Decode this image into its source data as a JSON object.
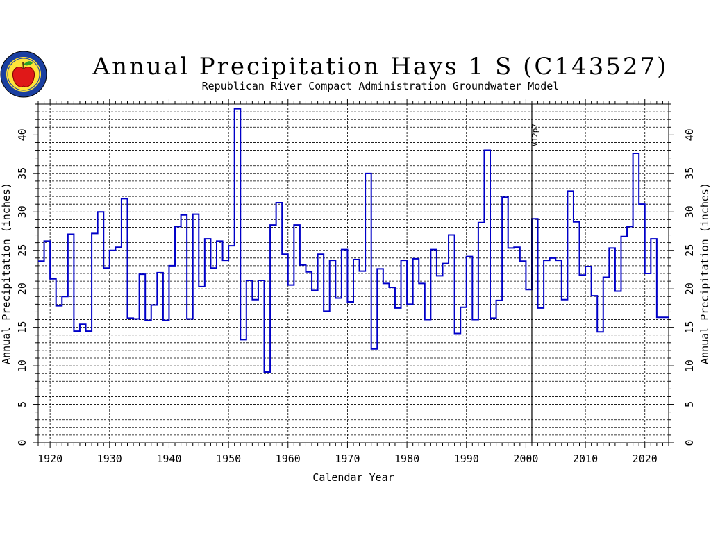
{
  "chart_data": {
    "type": "line",
    "step": true,
    "title": "Annual Precipitation Hays 1 S (C143527)",
    "subtitle": "Republican River Compact Administration Groundwater Model",
    "xlabel": "Calendar Year",
    "ylabel": "Annual Precipitation (inches)",
    "xlim": [
      1918,
      2024
    ],
    "ylim": [
      0,
      44
    ],
    "xticks": [
      1920,
      1930,
      1940,
      1950,
      1960,
      1970,
      1980,
      1990,
      2000,
      2010,
      2020
    ],
    "yticks": [
      0,
      5,
      10,
      15,
      20,
      25,
      30,
      35,
      40
    ],
    "grid": true,
    "line_color": "#0000c8",
    "annotation": {
      "text": "V12p7",
      "year": 2001
    },
    "series": [
      {
        "years": [
          1918,
          1919,
          1920,
          1921,
          1922,
          1923,
          1924,
          1925,
          1926,
          1927,
          1928,
          1929,
          1930,
          1931,
          1932,
          1933,
          1934,
          1935,
          1936,
          1937,
          1938,
          1939,
          1940,
          1941,
          1942,
          1943,
          1944,
          1945,
          1946,
          1947,
          1948,
          1949,
          1950,
          1951,
          1952,
          1953,
          1954,
          1955,
          1956,
          1957,
          1958,
          1959,
          1960,
          1961,
          1962,
          1963,
          1964,
          1965,
          1966,
          1967,
          1968,
          1969,
          1970,
          1971,
          1972,
          1973,
          1974,
          1975,
          1976,
          1977,
          1978,
          1979,
          1980,
          1981,
          1982,
          1983,
          1984,
          1985,
          1986,
          1987,
          1988,
          1989,
          1990,
          1991,
          1992,
          1993,
          1994,
          1995,
          1996,
          1997,
          1998,
          1999,
          2000,
          2001,
          2002,
          2003,
          2004,
          2005,
          2006,
          2007,
          2008,
          2009,
          2010,
          2011,
          2012,
          2013,
          2014,
          2015,
          2016,
          2017,
          2018,
          2019,
          2020,
          2021,
          2022,
          2023
        ],
        "values": [
          23.6,
          26.2,
          21.3,
          17.8,
          19.0,
          27.1,
          14.5,
          15.4,
          14.5,
          27.2,
          30.0,
          22.7,
          25.0,
          25.4,
          31.7,
          16.2,
          16.1,
          21.9,
          15.9,
          17.9,
          22.1,
          15.9,
          23.0,
          28.1,
          29.6,
          16.1,
          29.7,
          20.3,
          26.5,
          22.7,
          26.2,
          23.7,
          25.6,
          43.4,
          13.4,
          21.1,
          18.6,
          21.1,
          9.2,
          28.3,
          31.2,
          24.5,
          20.5,
          28.3,
          23.1,
          22.2,
          19.8,
          24.5,
          17.1,
          23.7,
          18.8,
          25.1,
          18.3,
          23.8,
          22.3,
          35.0,
          12.2,
          22.6,
          20.7,
          20.2,
          17.5,
          23.7,
          18.0,
          23.9,
          20.7,
          16.0,
          25.1,
          21.7,
          23.3,
          27.0,
          14.2,
          17.6,
          24.2,
          16.0,
          28.6,
          38.0,
          16.2,
          18.5,
          31.9,
          25.3,
          25.4,
          23.6,
          19.9,
          29.1,
          17.5,
          23.7,
          24.0,
          23.7,
          18.6,
          32.7,
          28.7,
          21.8,
          22.9,
          19.1,
          14.4,
          21.5,
          25.3,
          19.7,
          26.8,
          28.1,
          37.6,
          31.0,
          22.0,
          26.5,
          16.3,
          16.3
        ]
      }
    ]
  },
  "logo": {
    "name": "apple-logo-icon"
  }
}
